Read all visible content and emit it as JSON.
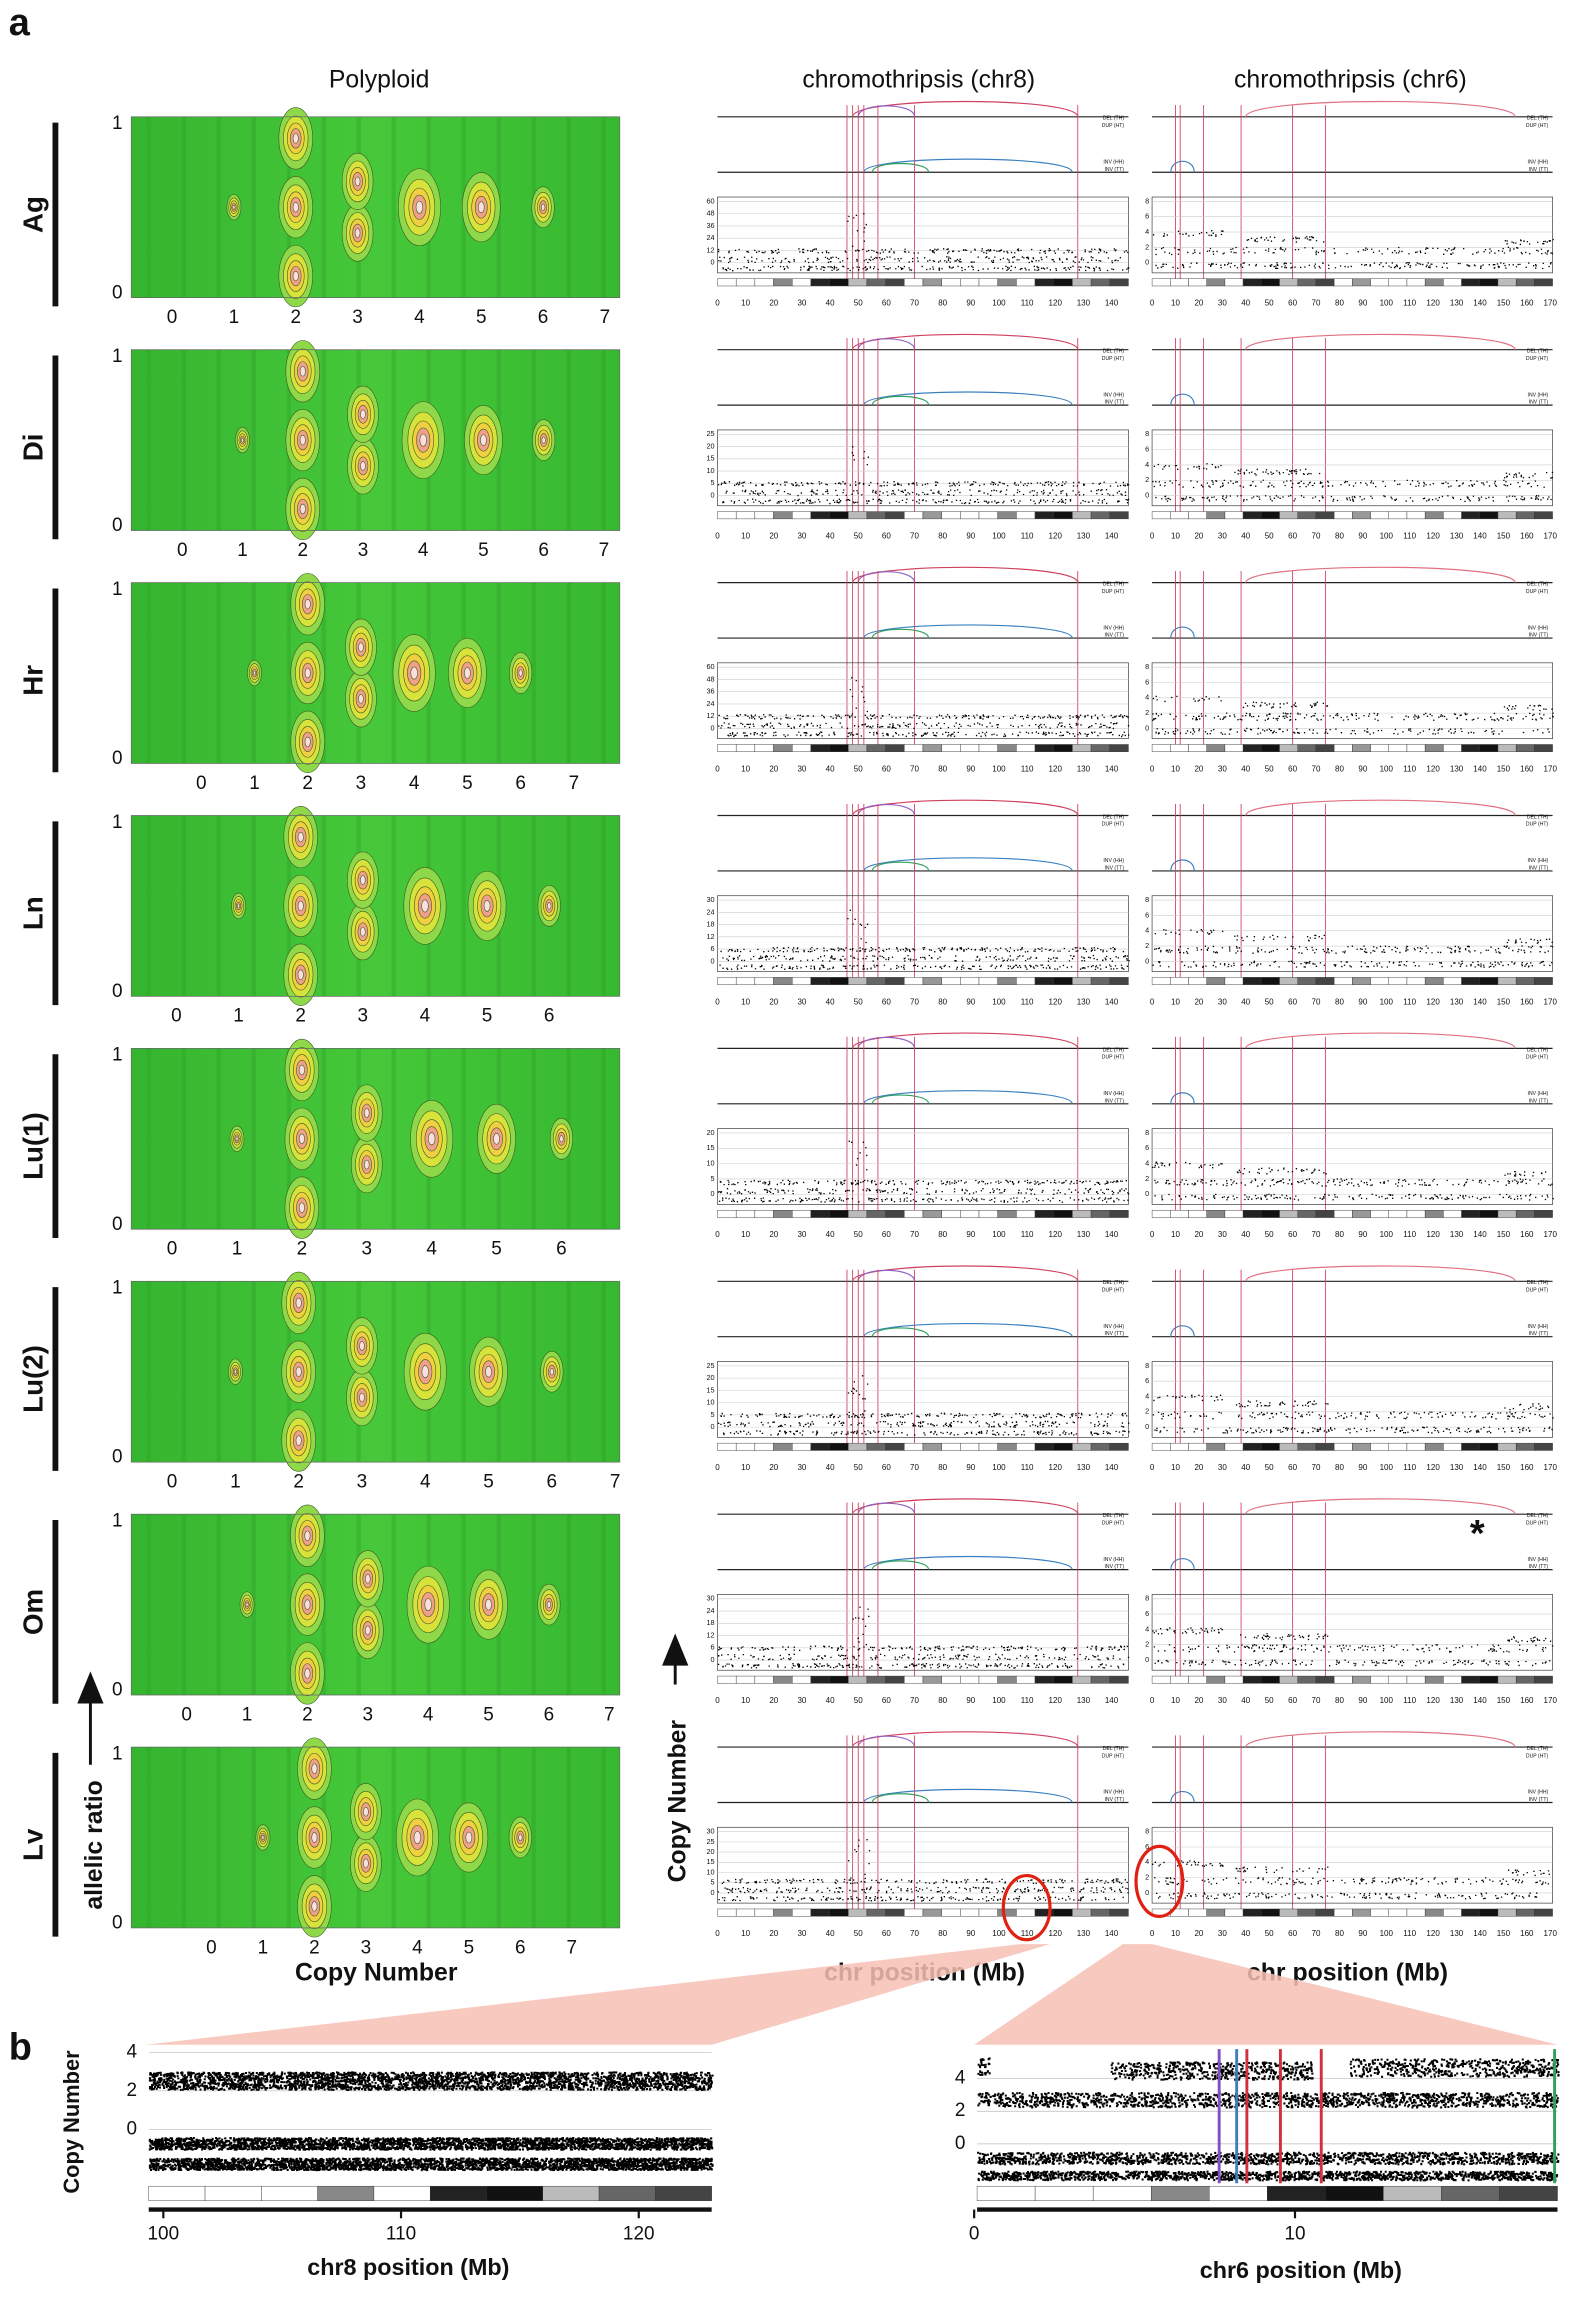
{
  "panel_a": {
    "label": "a",
    "columns": [
      "Polyploid",
      "chromothripsis (chr8)",
      "chromothripsis (chr6)"
    ],
    "rows": [
      {
        "label": "Ag",
        "cn_ticks": [
          0,
          1,
          2,
          3,
          4,
          5,
          6,
          7
        ],
        "chr8_yticks": [
          60,
          48,
          36,
          24,
          12,
          0
        ],
        "chr6_yticks": [
          8,
          6,
          4,
          2,
          0
        ]
      },
      {
        "label": "Di",
        "cn_ticks": [
          0,
          1,
          2,
          3,
          4,
          5,
          6,
          7
        ],
        "chr8_yticks": [
          25,
          20,
          15,
          10,
          5,
          0
        ],
        "chr6_yticks": [
          8,
          6,
          4,
          2,
          0
        ]
      },
      {
        "label": "Hr",
        "cn_ticks": [
          0,
          1,
          2,
          3,
          4,
          5,
          6,
          7
        ],
        "chr8_yticks": [
          60,
          48,
          36,
          24,
          12,
          0
        ],
        "chr6_yticks": [
          8,
          6,
          4,
          2,
          0
        ]
      },
      {
        "label": "Ln",
        "cn_ticks": [
          0,
          1,
          2,
          3,
          4,
          5,
          6
        ],
        "chr8_yticks": [
          30,
          24,
          18,
          12,
          6,
          0
        ],
        "chr6_yticks": [
          8,
          6,
          4,
          2,
          0
        ]
      },
      {
        "label": "Lu(1)",
        "cn_ticks": [
          0,
          1,
          2,
          3,
          4,
          5,
          6
        ],
        "chr8_yticks": [
          20,
          15,
          10,
          5,
          0
        ],
        "chr6_yticks": [
          8,
          6,
          4,
          2,
          0
        ]
      },
      {
        "label": "Lu(2)",
        "cn_ticks": [
          0,
          1,
          2,
          3,
          4,
          5,
          6,
          7
        ],
        "chr8_yticks": [
          25,
          20,
          15,
          10,
          5,
          0
        ],
        "chr6_yticks": [
          8,
          6,
          4,
          2,
          0
        ]
      },
      {
        "label": "Om",
        "cn_ticks": [
          0,
          1,
          2,
          3,
          4,
          5,
          6,
          7
        ],
        "chr8_yticks": [
          30,
          24,
          18,
          12,
          6,
          0
        ],
        "chr6_yticks": [
          8,
          6,
          4,
          2,
          0
        ]
      },
      {
        "label": "Lv",
        "cn_ticks": [
          0,
          1,
          2,
          3,
          4,
          5,
          6,
          7
        ],
        "chr8_yticks": [
          30,
          25,
          20,
          15,
          10,
          5,
          0
        ],
        "chr6_yticks": [
          8,
          6,
          4,
          2,
          0
        ]
      }
    ],
    "ratio_ticks": [
      0,
      1
    ],
    "chr8_xticks": [
      0,
      10,
      20,
      30,
      40,
      50,
      60,
      70,
      80,
      90,
      100,
      110,
      120,
      130,
      140
    ],
    "chr6_xticks": [
      0,
      10,
      20,
      30,
      40,
      50,
      60,
      70,
      80,
      90,
      100,
      110,
      120,
      130,
      140,
      150,
      160,
      170
    ],
    "sv_legend": [
      "DEL (TH)",
      "DUP (HT)",
      "INV (HH)",
      "INV (TT)"
    ],
    "polyploid_x_title": "Copy Number",
    "polyploid_y_title": "allelic ratio",
    "chr_y_title": "Copy Number",
    "chr8_x_title": "chr position (Mb)",
    "chr6_x_title": "chr position (Mb)",
    "mark": "*"
  },
  "panel_b": {
    "label": "b",
    "y_title": "Copy Number",
    "left": {
      "x_title": "chr8 position (Mb)",
      "xticks": [
        100,
        110,
        120
      ],
      "yticks": [
        0,
        2,
        4
      ]
    },
    "right": {
      "x_title": "chr6 position (Mb)",
      "xticks": [
        0,
        10
      ],
      "yticks": [
        0,
        2,
        4
      ]
    }
  }
}
